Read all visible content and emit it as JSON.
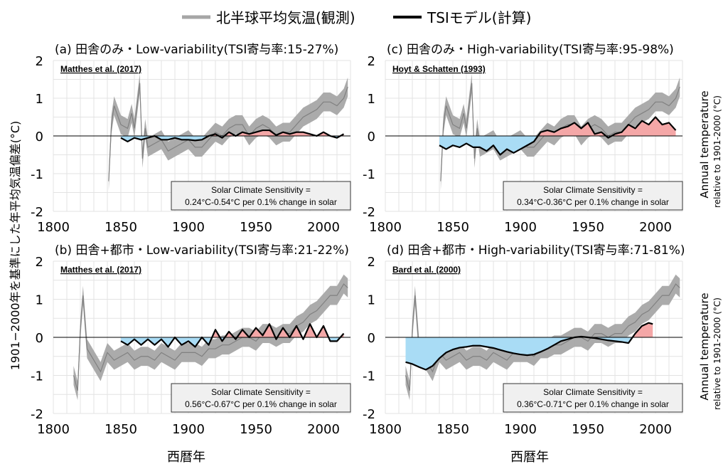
{
  "legend": {
    "observed_label": "北半球平均気温(観測)",
    "model_label": "TSIモデル(計算)"
  },
  "y_axis_label": "1901−2000年を基準にした年平均気温偏差(°C)",
  "x_axis_label": "西暦年",
  "right_label_main": "Annual temperature",
  "right_label_sub": "relative to 1901-2000 (°C)",
  "colors": {
    "observed_band": "#a6a6a6",
    "observed_line": "#808080",
    "model_line": "#000000",
    "positive_fill": "#f4a7a7",
    "negative_fill": "#a9dcf5",
    "sensitivity_box_bg": "#f0f0f0"
  },
  "chart_data": [
    {
      "type": "line",
      "title": "(a) 田舎のみ・Low-variability(TSI寄与率:15-27%)",
      "source": "Matthes et al. (2017)",
      "sensitivity_line1": "Solar Climate Sensitivity =",
      "sensitivity_line2": "0.24°C-0.54°C per 0.1% change in solar",
      "xlim": [
        1800,
        2020
      ],
      "ylim": [
        -2,
        2
      ],
      "xticks": [
        "1800",
        "1850",
        "1900",
        "1950",
        "2000"
      ],
      "yticks": [
        "-2",
        "-1",
        "0",
        "1",
        "2"
      ],
      "grid": true,
      "series": [
        {
          "name": "北半球平均気温(観測)",
          "x": [
            1841,
            1843,
            1845,
            1847,
            1850,
            1855,
            1858,
            1860,
            1862,
            1864,
            1866,
            1868,
            1870,
            1875,
            1880,
            1885,
            1890,
            1895,
            1900,
            1905,
            1910,
            1915,
            1920,
            1925,
            1930,
            1935,
            1940,
            1945,
            1950,
            1955,
            1960,
            1965,
            1970,
            1975,
            1980,
            1985,
            1990,
            1995,
            2000,
            2005,
            2010,
            2015,
            2018
          ],
          "y": [
            -1.2,
            0.3,
            0.8,
            0.6,
            0.3,
            0.2,
            0.6,
            0.2,
            0.8,
            1.4,
            -0.6,
            0.2,
            -0.3,
            -0.2,
            -0.1,
            -0.4,
            -0.3,
            -0.2,
            -0.1,
            -0.3,
            -0.3,
            -0.1,
            0.1,
            0.0,
            0.2,
            0.3,
            0.3,
            0.0,
            0.2,
            0.3,
            0.2,
            0.0,
            0.1,
            0.1,
            0.3,
            0.5,
            0.6,
            0.7,
            0.9,
            0.9,
            0.8,
            1.0,
            1.3
          ]
        },
        {
          "name": "TSIモデル(計算)",
          "x": [
            1850,
            1855,
            1860,
            1865,
            1870,
            1875,
            1880,
            1885,
            1890,
            1895,
            1900,
            1905,
            1910,
            1915,
            1920,
            1925,
            1930,
            1935,
            1940,
            1945,
            1950,
            1955,
            1960,
            1965,
            1970,
            1975,
            1980,
            1985,
            1990,
            1995,
            2000,
            2005,
            2010,
            2015
          ],
          "y": [
            -0.05,
            -0.15,
            -0.05,
            -0.1,
            -0.05,
            0.0,
            -0.1,
            -0.1,
            -0.05,
            -0.1,
            -0.1,
            -0.12,
            -0.1,
            0.0,
            0.05,
            -0.05,
            0.1,
            0.0,
            0.1,
            0.05,
            0.1,
            0.15,
            0.15,
            0.02,
            0.1,
            0.05,
            0.1,
            0.1,
            0.05,
            0.0,
            0.1,
            0.0,
            -0.05,
            0.05
          ]
        }
      ]
    },
    {
      "type": "line",
      "title": "(c) 田舎のみ・High-variability(TSI寄与率:95-98%)",
      "source": "Hoyt & Schatten (1993)",
      "sensitivity_line1": "Solar Climate Sensitivity =",
      "sensitivity_line2": "0.34°C-0.36°C per 0.1% change in solar",
      "xlim": [
        1800,
        2020
      ],
      "ylim": [
        -2,
        2
      ],
      "xticks": [
        "1800",
        "1850",
        "1900",
        "1950",
        "2000"
      ],
      "yticks": [
        "-2",
        "-1",
        "0",
        "1",
        "2"
      ],
      "grid": true,
      "series": [
        {
          "name": "北半球平均気温(観測)",
          "x": [
            1841,
            1843,
            1845,
            1847,
            1850,
            1855,
            1858,
            1860,
            1862,
            1864,
            1866,
            1868,
            1870,
            1875,
            1880,
            1885,
            1890,
            1895,
            1900,
            1905,
            1910,
            1915,
            1920,
            1925,
            1930,
            1935,
            1940,
            1945,
            1950,
            1955,
            1960,
            1965,
            1970,
            1975,
            1980,
            1985,
            1990,
            1995,
            2000,
            2005,
            2010,
            2015,
            2018
          ],
          "y": [
            -1.2,
            0.3,
            0.8,
            0.6,
            0.3,
            0.2,
            0.6,
            0.2,
            0.8,
            1.4,
            -0.6,
            0.2,
            -0.3,
            -0.2,
            -0.1,
            -0.4,
            -0.3,
            -0.2,
            -0.1,
            -0.3,
            -0.3,
            -0.1,
            0.1,
            0.0,
            0.2,
            0.3,
            0.3,
            0.0,
            0.2,
            0.3,
            0.2,
            0.0,
            0.1,
            0.1,
            0.3,
            0.5,
            0.6,
            0.7,
            0.9,
            0.9,
            0.8,
            1.0,
            1.3
          ]
        },
        {
          "name": "TSIモデル(計算)",
          "x": [
            1840,
            1845,
            1850,
            1855,
            1860,
            1865,
            1870,
            1875,
            1880,
            1885,
            1890,
            1895,
            1900,
            1905,
            1910,
            1915,
            1920,
            1925,
            1930,
            1935,
            1940,
            1945,
            1950,
            1955,
            1960,
            1965,
            1970,
            1975,
            1980,
            1985,
            1990,
            1995,
            2000,
            2005,
            2010,
            2015
          ],
          "y": [
            -0.25,
            -0.35,
            -0.25,
            -0.3,
            -0.2,
            -0.3,
            -0.3,
            -0.4,
            -0.25,
            -0.5,
            -0.35,
            -0.45,
            -0.35,
            -0.25,
            -0.15,
            0.1,
            0.15,
            0.1,
            0.2,
            0.25,
            0.35,
            0.2,
            0.35,
            0.05,
            0.1,
            -0.05,
            0.05,
            0.1,
            0.3,
            0.2,
            0.4,
            0.3,
            0.5,
            0.3,
            0.35,
            0.15
          ]
        }
      ]
    },
    {
      "type": "line",
      "title": "(b) 田舎+都市・Low-variability(TSI寄与率:21-22%)",
      "source": "Matthes et al. (2017)",
      "sensitivity_line1": "Solar Climate Sensitivity =",
      "sensitivity_line2": "0.56°C-0.67°C per 0.1% change in solar",
      "xlim": [
        1800,
        2020
      ],
      "ylim": [
        -2,
        2
      ],
      "xticks": [
        "1800",
        "1850",
        "1900",
        "1950",
        "2000"
      ],
      "yticks": [
        "-2",
        "-1",
        "0",
        "1",
        "2"
      ],
      "grid": true,
      "series": [
        {
          "name": "北半球平均気温(観測)",
          "x": [
            1815,
            1818,
            1820,
            1822,
            1825,
            1830,
            1835,
            1840,
            1845,
            1850,
            1855,
            1860,
            1865,
            1870,
            1875,
            1880,
            1885,
            1890,
            1895,
            1900,
            1905,
            1910,
            1915,
            1920,
            1925,
            1930,
            1935,
            1940,
            1945,
            1950,
            1955,
            1960,
            1965,
            1970,
            1975,
            1980,
            1985,
            1990,
            1995,
            2000,
            2005,
            2010,
            2015,
            2018
          ],
          "y": [
            -1.0,
            -1.4,
            0.2,
            1.1,
            -0.3,
            -0.6,
            -0.9,
            -0.4,
            -0.6,
            -0.5,
            -0.4,
            -0.6,
            -0.5,
            -0.5,
            -0.6,
            -0.4,
            -0.5,
            -0.6,
            -0.4,
            -0.4,
            -0.4,
            -0.5,
            -0.3,
            -0.3,
            -0.2,
            -0.2,
            -0.1,
            0.0,
            0.0,
            -0.1,
            0.1,
            0.1,
            0.0,
            0.1,
            0.1,
            0.3,
            0.4,
            0.6,
            0.7,
            0.9,
            1.1,
            1.1,
            1.4,
            1.3
          ]
        },
        {
          "name": "TSIモデル(計算)",
          "x": [
            1850,
            1855,
            1860,
            1865,
            1870,
            1875,
            1880,
            1885,
            1890,
            1895,
            1900,
            1905,
            1910,
            1915,
            1920,
            1925,
            1930,
            1935,
            1940,
            1945,
            1950,
            1955,
            1960,
            1965,
            1970,
            1975,
            1980,
            1985,
            1990,
            1995,
            2000,
            2005,
            2010,
            2015
          ],
          "y": [
            -0.1,
            -0.2,
            -0.05,
            -0.2,
            -0.05,
            -0.2,
            -0.05,
            -0.25,
            0.0,
            -0.2,
            -0.1,
            -0.25,
            0.0,
            -0.2,
            0.2,
            -0.1,
            0.15,
            -0.05,
            0.2,
            0.0,
            0.25,
            0.05,
            0.35,
            -0.05,
            0.25,
            0.0,
            0.3,
            -0.05,
            0.35,
            0.0,
            0.3,
            -0.1,
            -0.1,
            0.1
          ]
        }
      ]
    },
    {
      "type": "line",
      "title": "(d) 田舎+都市・High-variability(TSI寄与率:71-81%)",
      "source": "Bard et al. (2000)",
      "sensitivity_line1": "Solar Climate Sensitivity =",
      "sensitivity_line2": "0.36°C-0.71°C per 0.1% change in solar",
      "xlim": [
        1800,
        2020
      ],
      "ylim": [
        -2,
        2
      ],
      "xticks": [
        "1800",
        "1850",
        "1900",
        "1950",
        "2000"
      ],
      "yticks": [
        "-2",
        "-1",
        "0",
        "1",
        "2"
      ],
      "grid": true,
      "series": [
        {
          "name": "北半球平均気温(観測)",
          "x": [
            1815,
            1818,
            1820,
            1822,
            1825,
            1830,
            1835,
            1840,
            1845,
            1850,
            1855,
            1860,
            1865,
            1870,
            1875,
            1880,
            1885,
            1890,
            1895,
            1900,
            1905,
            1910,
            1915,
            1920,
            1925,
            1930,
            1935,
            1940,
            1945,
            1950,
            1955,
            1960,
            1965,
            1970,
            1975,
            1980,
            1985,
            1990,
            1995,
            2000,
            2005,
            2010,
            2015,
            2018
          ],
          "y": [
            -1.0,
            -1.4,
            0.2,
            1.1,
            -0.3,
            -0.6,
            -0.9,
            -0.4,
            -0.6,
            -0.5,
            -0.4,
            -0.6,
            -0.5,
            -0.5,
            -0.6,
            -0.4,
            -0.5,
            -0.6,
            -0.4,
            -0.4,
            -0.4,
            -0.5,
            -0.3,
            -0.3,
            -0.2,
            -0.2,
            -0.1,
            0.0,
            0.0,
            -0.1,
            0.1,
            0.1,
            0.0,
            0.1,
            0.1,
            0.3,
            0.4,
            0.6,
            0.7,
            0.9,
            1.1,
            1.1,
            1.4,
            1.3
          ]
        },
        {
          "name": "TSIモデル(計算)",
          "x": [
            1815,
            1820,
            1825,
            1830,
            1835,
            1840,
            1845,
            1850,
            1855,
            1860,
            1865,
            1870,
            1875,
            1880,
            1885,
            1890,
            1895,
            1900,
            1905,
            1910,
            1915,
            1920,
            1925,
            1930,
            1935,
            1940,
            1945,
            1950,
            1955,
            1960,
            1965,
            1970,
            1975,
            1980,
            1985,
            1990,
            1995,
            1998
          ],
          "y": [
            -0.65,
            -0.7,
            -0.78,
            -0.85,
            -0.75,
            -0.55,
            -0.4,
            -0.32,
            -0.27,
            -0.25,
            -0.22,
            -0.22,
            -0.25,
            -0.28,
            -0.33,
            -0.38,
            -0.42,
            -0.45,
            -0.47,
            -0.45,
            -0.38,
            -0.3,
            -0.2,
            -0.1,
            -0.05,
            0.0,
            0.02,
            0.0,
            -0.02,
            -0.05,
            -0.08,
            -0.1,
            -0.12,
            -0.15,
            0.1,
            0.3,
            0.38,
            0.35
          ]
        }
      ]
    }
  ]
}
